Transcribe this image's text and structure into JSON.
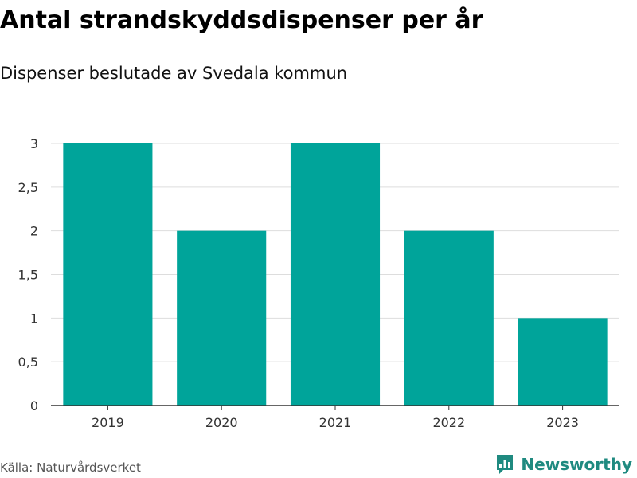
{
  "title": "Antal strandskyddsdispenser per år",
  "subtitle": "Dispenser beslutade av Svedala kommun",
  "source": "Källa: Naturvårdsverket",
  "brand": {
    "name": "Newsworthy",
    "icon": "newsworthy-logo-icon"
  },
  "colors": {
    "bar": "#00a49a",
    "grid": "#dddddd",
    "axis": "#333333",
    "brand": "#1f8a80"
  },
  "chart_data": {
    "type": "bar",
    "categories": [
      "2019",
      "2020",
      "2021",
      "2022",
      "2023"
    ],
    "values": [
      3,
      2,
      3,
      2,
      1
    ],
    "ylim": [
      0,
      3
    ],
    "yticks": [
      0,
      0.5,
      1,
      1.5,
      2,
      2.5,
      3
    ],
    "ytick_labels": [
      "0",
      "0,5",
      "1",
      "1,5",
      "2",
      "2,5",
      "3"
    ],
    "grid": true,
    "legend": false
  }
}
